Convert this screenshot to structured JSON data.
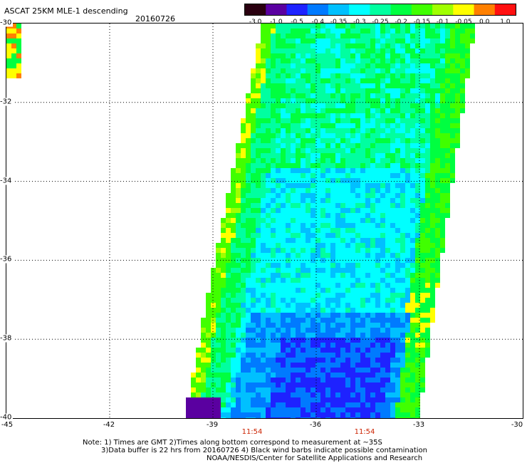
{
  "header": {
    "title": "ASCAT 25KM MLE-1 descending",
    "date": "20160726"
  },
  "colorbar": {
    "labels": [
      "-3.0",
      "-1.0",
      "-0.5",
      "-0.4",
      "-0.35",
      "-0.3",
      "-0.25",
      "-0.2",
      "-0.15",
      "-0.1",
      "-0.05",
      "0.0",
      "1.0"
    ],
    "colors": [
      "#2a0010",
      "#5a00a0",
      "#1e22ff",
      "#007aff",
      "#00c0ff",
      "#00ffff",
      "#00ffa0",
      "#00ff40",
      "#40ff00",
      "#a0ff00",
      "#ffff00",
      "#ff8000",
      "#ff1010"
    ]
  },
  "map": {
    "lat_range": [
      -40,
      -30
    ],
    "lon_range": [
      -45,
      -30
    ],
    "lat_labels": [
      "-30",
      "-32",
      "-34",
      "-36",
      "-38",
      "-40"
    ],
    "lon_labels": [
      "-45",
      "-42",
      "-39",
      "-36",
      "-33",
      "-30"
    ],
    "times": [
      "11:54",
      "11:54"
    ]
  },
  "notes": {
    "line1": "Note: 1) Times are GMT 2)Times along bottom correspond to measurement at ~35S",
    "line2": "3)Data buffer is 22 hrs from 20160726 4) Black wind barbs indicate possible contamination",
    "line3": "NOAA/NESDIS/Center for Satellite Applications and Research"
  }
}
